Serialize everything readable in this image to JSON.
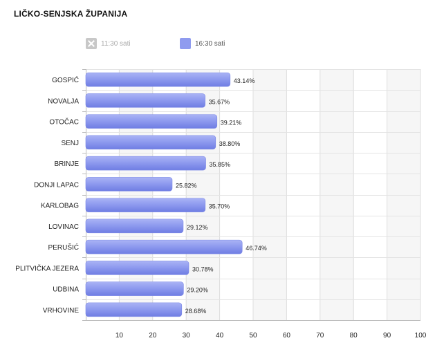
{
  "title": "LIČKO-SENJSKA ŽUPANIJA",
  "legend": [
    {
      "label": "11:30 sati",
      "state": "hidden",
      "color": "#c8c8c8"
    },
    {
      "label": "16:30 sati",
      "state": "visible",
      "color": "#8f9bef"
    }
  ],
  "chart_data": {
    "type": "bar",
    "orientation": "horizontal",
    "title": "LIČKO-SENJSKA ŽUPANIJA",
    "categories": [
      "GOSPIĆ",
      "NOVALJA",
      "OTOČAC",
      "SENJ",
      "BRINJE",
      "DONJI LAPAC",
      "KARLOBAG",
      "LOVINAC",
      "PERUŠIĆ",
      "PLITVIČKA JEZERA",
      "UDBINA",
      "VRHOVINE"
    ],
    "series": [
      {
        "name": "16:30 sati",
        "values": [
          43.14,
          35.67,
          39.21,
          38.8,
          35.85,
          25.82,
          35.7,
          29.12,
          46.74,
          30.78,
          29.2,
          28.68
        ],
        "labels": [
          "43.14%",
          "35.67%",
          "39.21%",
          "38.80%",
          "35.85%",
          "25.82%",
          "35.70%",
          "29.12%",
          "46.74%",
          "30.78%",
          "29.20%",
          "28.68%"
        ]
      }
    ],
    "xlim": [
      0,
      100
    ],
    "xticks": [
      "10",
      "20",
      "30",
      "40",
      "50",
      "60",
      "70",
      "80",
      "90",
      "100"
    ],
    "grid": true,
    "bar_color": "#8f9bef",
    "legend_position": "top-left"
  }
}
